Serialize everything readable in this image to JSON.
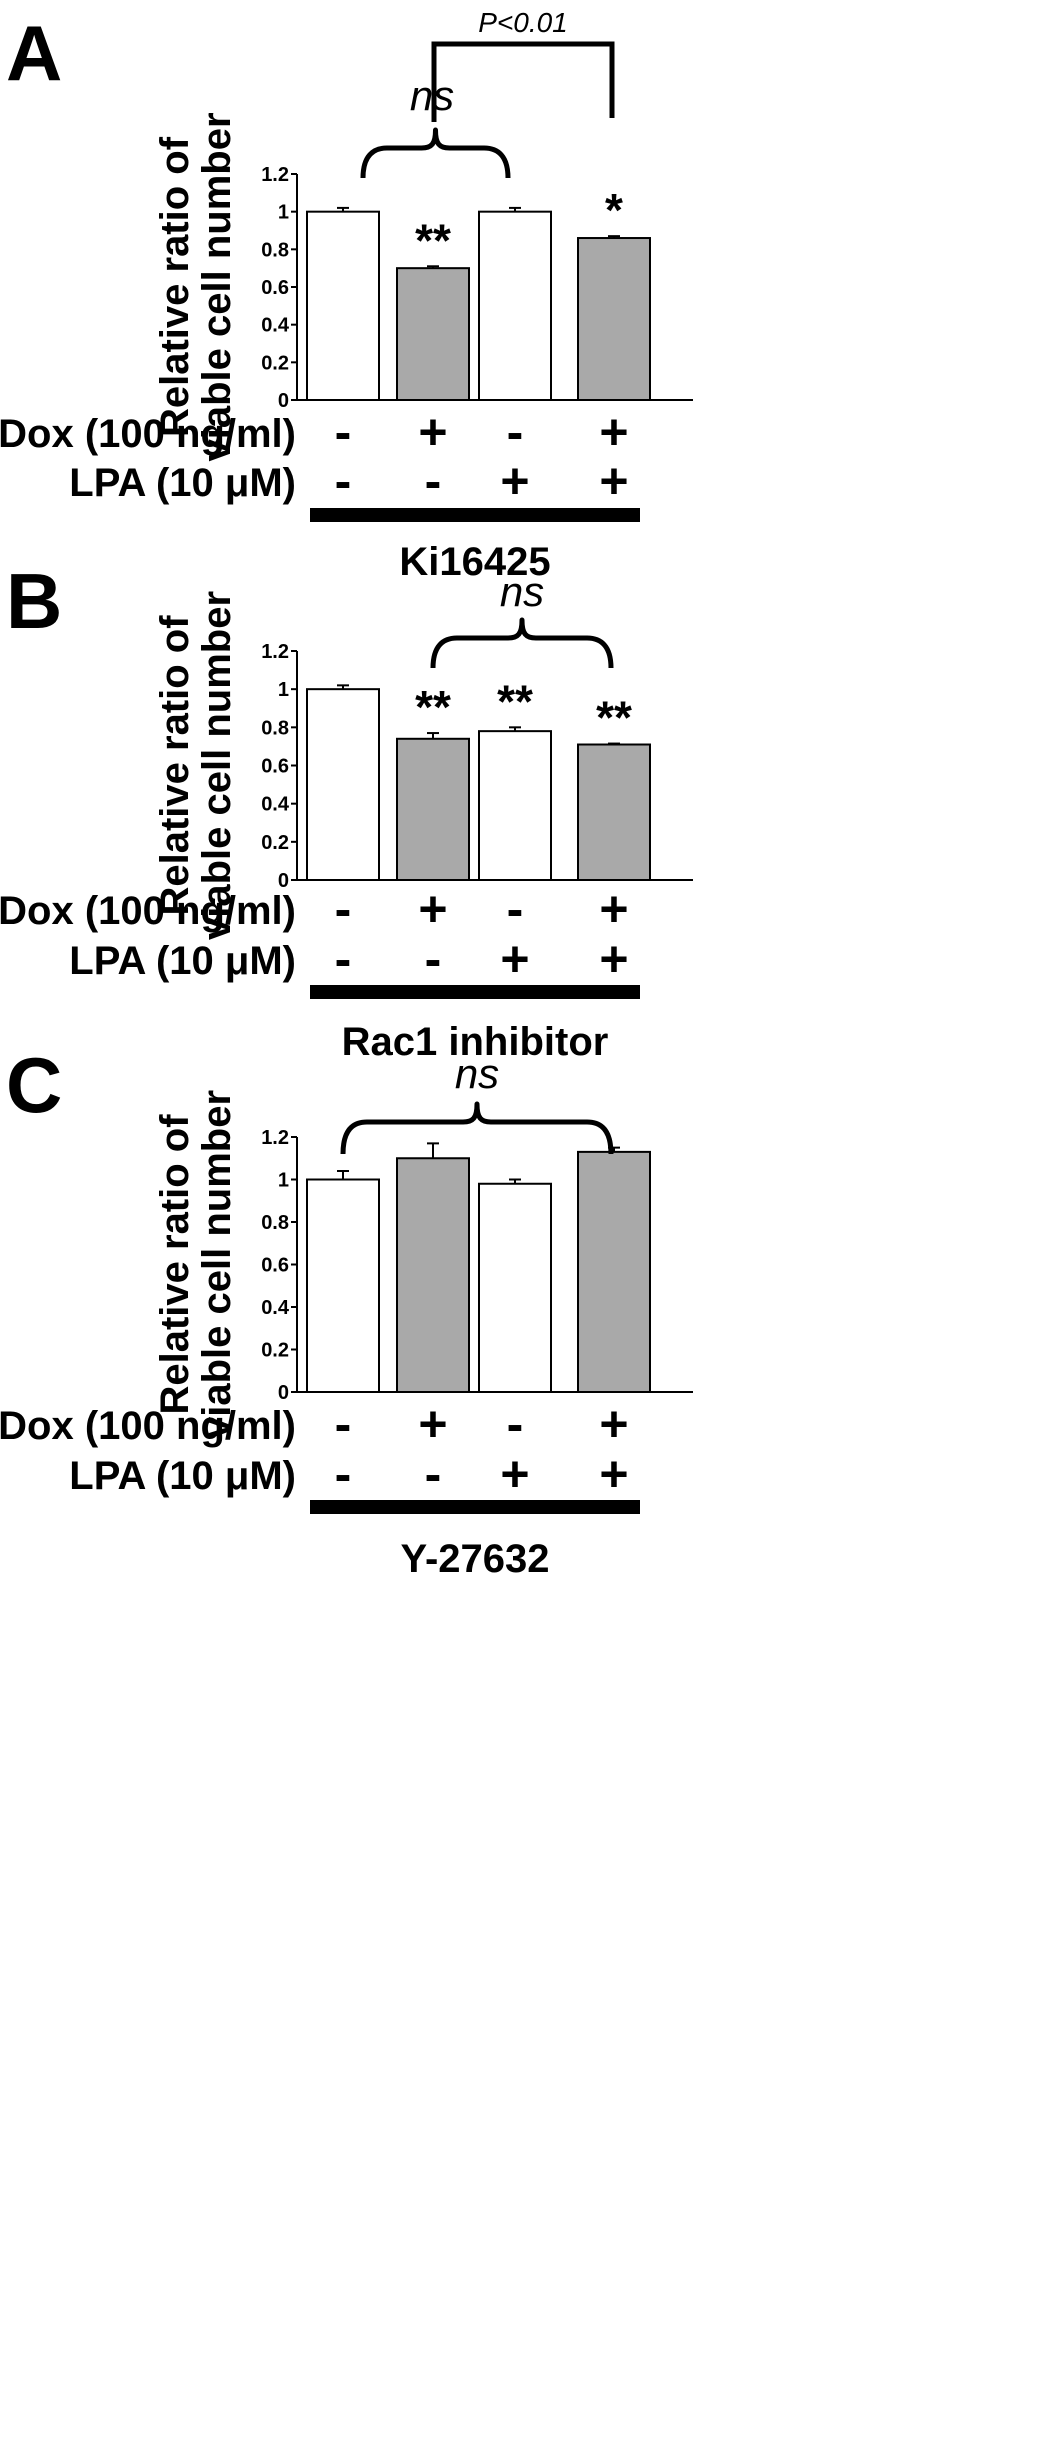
{
  "panels": [
    {
      "letter": "A",
      "treatment": "Ki16425",
      "ylabel_line1": "Relative ratio of",
      "ylabel_line2": "viable cell number",
      "row_labels": [
        "Dox (100 ng/ml)",
        "LPA (10 μM)"
      ],
      "conditions": [
        {
          "dox": "-",
          "lpa": "-"
        },
        {
          "dox": "+",
          "lpa": "-"
        },
        {
          "dox": "-",
          "lpa": "+"
        },
        {
          "dox": "+",
          "lpa": "+"
        }
      ],
      "annotations": {
        "ns": "ns",
        "p_value": "P<0.01"
      }
    },
    {
      "letter": "B",
      "treatment": "Rac1 inhibitor",
      "ylabel_line1": "Relative ratio of",
      "ylabel_line2": "viable cell number",
      "row_labels": [
        "Dox (100 ng/ml)",
        "LPA (10 μM)"
      ],
      "conditions": [
        {
          "dox": "-",
          "lpa": "-"
        },
        {
          "dox": "+",
          "lpa": "-"
        },
        {
          "dox": "-",
          "lpa": "+"
        },
        {
          "dox": "+",
          "lpa": "+"
        }
      ],
      "annotations": {
        "ns": "ns"
      }
    },
    {
      "letter": "C",
      "treatment": "Y-27632",
      "ylabel_line1": "Relative ratio of",
      "ylabel_line2": "viable cell number",
      "row_labels": [
        "Dox (100 ng/ml)",
        "LPA (10 μM)"
      ],
      "conditions": [
        {
          "dox": "-",
          "lpa": "-"
        },
        {
          "dox": "+",
          "lpa": "-"
        },
        {
          "dox": "-",
          "lpa": "+"
        },
        {
          "dox": "+",
          "lpa": "+"
        }
      ],
      "annotations": {
        "ns": "ns"
      }
    }
  ],
  "chart_data": [
    {
      "type": "bar",
      "title": "",
      "xlabel": "",
      "ylabel": "Relative ratio of viable cell number",
      "ylim": [
        0,
        1.2
      ],
      "yticks": [
        "0",
        "0.2",
        "0.4",
        "0.6",
        "0.8",
        "1",
        "1.2"
      ],
      "values": [
        1.0,
        0.7,
        1.0,
        0.86
      ],
      "errors": [
        0.02,
        0.01,
        0.02,
        0.01
      ],
      "bar_colors": [
        "#ffffff",
        "#a9a9a9",
        "#ffffff",
        "#a9a9a9"
      ],
      "significance": [
        "",
        "**",
        "",
        "*"
      ]
    },
    {
      "type": "bar",
      "title": "",
      "xlabel": "",
      "ylabel": "Relative ratio of viable cell number",
      "ylim": [
        0,
        1.2
      ],
      "yticks": [
        "0",
        "0.2",
        "0.4",
        "0.6",
        "0.8",
        "1",
        "1.2"
      ],
      "values": [
        1.0,
        0.74,
        0.78,
        0.71
      ],
      "errors": [
        0.02,
        0.03,
        0.02,
        0.005
      ],
      "bar_colors": [
        "#ffffff",
        "#a9a9a9",
        "#ffffff",
        "#a9a9a9"
      ],
      "significance": [
        "",
        "**",
        "**",
        "**"
      ]
    },
    {
      "type": "bar",
      "title": "",
      "xlabel": "",
      "ylabel": "Relative ratio of viable cell number",
      "ylim": [
        0,
        1.2
      ],
      "yticks": [
        "0",
        "0.2",
        "0.4",
        "0.6",
        "0.8",
        "1",
        "1.2"
      ],
      "values": [
        1.0,
        1.1,
        0.98,
        1.13
      ],
      "errors": [
        0.04,
        0.07,
        0.02,
        0.02
      ],
      "bar_colors": [
        "#ffffff",
        "#a9a9a9",
        "#ffffff",
        "#a9a9a9"
      ],
      "significance": [
        "",
        "",
        "",
        ""
      ]
    }
  ]
}
